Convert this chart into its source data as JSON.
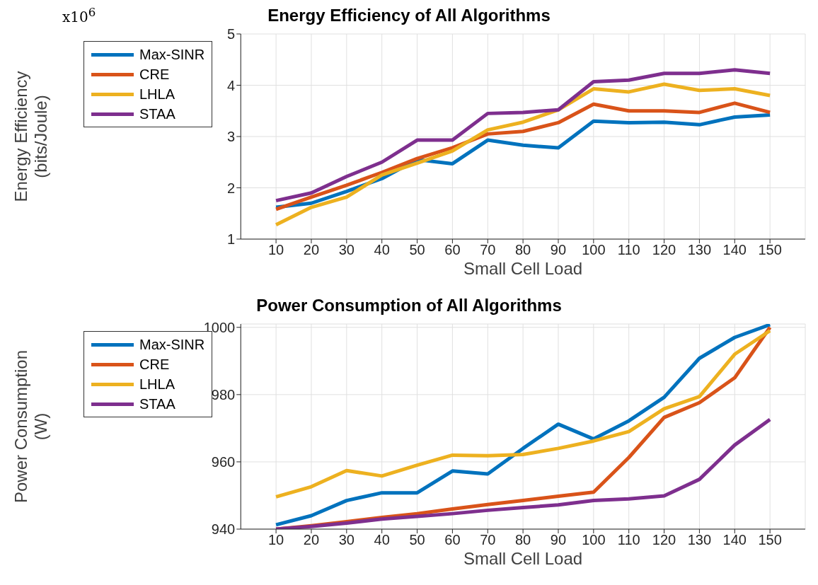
{
  "chart_data": [
    {
      "type": "line",
      "title": "Energy Efficiency of All Algorithms",
      "xlabel": "Small Cell Load",
      "ylabel": "Energy Efficiency\n(bits/Joule)",
      "annotations": [
        "x10$^{6}$"
      ],
      "x": [
        10,
        20,
        30,
        40,
        50,
        60,
        70,
        80,
        90,
        100,
        110,
        120,
        130,
        140,
        150
      ],
      "xlim": [
        0,
        160
      ],
      "xticks": [
        10,
        20,
        30,
        40,
        50,
        60,
        70,
        80,
        90,
        100,
        110,
        120,
        130,
        140,
        150
      ],
      "ylim": [
        1,
        5
      ],
      "yticks": [
        1,
        2,
        3,
        4,
        5
      ],
      "grid": true,
      "legend": "top left",
      "marker": "none",
      "line_style": "solid",
      "series": [
        {
          "name": "Max-SINR",
          "color": "#0072bd",
          "values": [
            1.62,
            1.7,
            1.93,
            2.18,
            2.55,
            2.47,
            2.93,
            2.83,
            2.78,
            3.3,
            3.27,
            3.28,
            3.23,
            3.38,
            3.42
          ]
        },
        {
          "name": "CRE",
          "color": "#d95319",
          "values": [
            1.58,
            1.82,
            2.05,
            2.3,
            2.57,
            2.78,
            3.05,
            3.1,
            3.27,
            3.63,
            3.5,
            3.5,
            3.47,
            3.65,
            3.47
          ]
        },
        {
          "name": "LHLA",
          "color": "#edb120",
          "values": [
            1.28,
            1.62,
            1.82,
            2.25,
            2.48,
            2.72,
            3.13,
            3.28,
            3.52,
            3.93,
            3.87,
            4.02,
            3.9,
            3.93,
            3.8
          ]
        },
        {
          "name": "STAA",
          "color": "#7e2f8e",
          "values": [
            1.75,
            1.9,
            2.22,
            2.5,
            2.93,
            2.93,
            3.45,
            3.47,
            3.52,
            4.07,
            4.1,
            4.23,
            4.23,
            4.3,
            4.23
          ]
        }
      ]
    },
    {
      "type": "line",
      "title": "Power Consumption of All Algorithms",
      "xlabel": "Small Cell Load",
      "ylabel": "Power Consumption\n(W)",
      "x": [
        10,
        20,
        30,
        40,
        50,
        60,
        70,
        80,
        90,
        100,
        110,
        120,
        130,
        140,
        150
      ],
      "xlim": [
        0,
        160
      ],
      "xticks": [
        10,
        20,
        30,
        40,
        50,
        60,
        70,
        80,
        90,
        100,
        110,
        120,
        130,
        140,
        150
      ],
      "ylim": [
        940,
        1001
      ],
      "yticks": [
        940,
        960,
        980,
        1000
      ],
      "grid": true,
      "legend": "top left",
      "marker": "none",
      "line_style": "solid",
      "series": [
        {
          "name": "Max-SINR",
          "color": "#0072bd",
          "values": [
            941.3,
            944,
            948.5,
            950.8,
            950.8,
            957.3,
            956.4,
            964,
            971.2,
            966.8,
            972.2,
            979.2,
            990.8,
            997,
            1000.8
          ]
        },
        {
          "name": "CRE",
          "color": "#d95319",
          "values": [
            940,
            941,
            942.2,
            943.5,
            944.6,
            946,
            947.3,
            948.5,
            949.8,
            951,
            961.3,
            973.2,
            977.6,
            985,
            1000
          ]
        },
        {
          "name": "LHLA",
          "color": "#edb120",
          "values": [
            949.6,
            952.6,
            957.4,
            955.8,
            959,
            962,
            961.8,
            962.2,
            964,
            966.2,
            969,
            975.8,
            979.4,
            992,
            999
          ]
        },
        {
          "name": "STAA",
          "color": "#7e2f8e",
          "values": [
            940,
            940.8,
            941.8,
            943,
            943.8,
            944.6,
            945.6,
            946.4,
            947.2,
            948.5,
            949,
            949.9,
            954.8,
            965,
            972.6
          ]
        }
      ]
    }
  ]
}
